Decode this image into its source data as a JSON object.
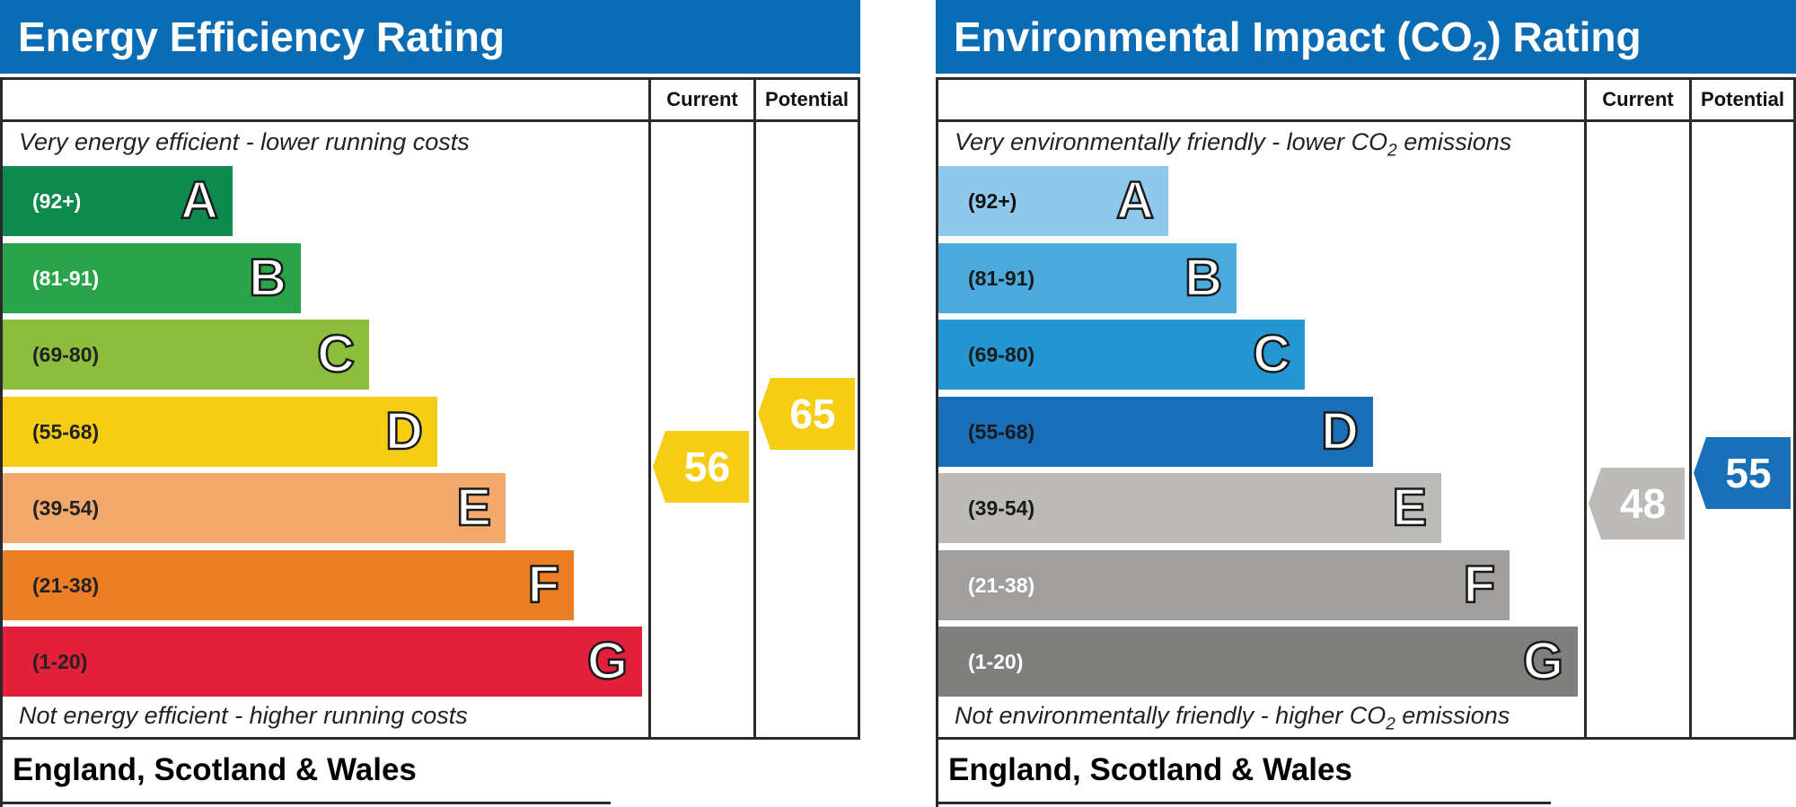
{
  "chart_data": [
    {
      "type": "bar",
      "title": "Energy Efficiency Rating",
      "columns": [
        "Current",
        "Potential"
      ],
      "top_note": "Very energy efficient - lower running costs",
      "bottom_note": "Not energy efficient - higher running costs",
      "footer": "England, Scotland & Wales",
      "bands": [
        {
          "letter": "A",
          "range": "(92+)",
          "color": "#0f8a4f",
          "text_color": "#ffffff"
        },
        {
          "letter": "B",
          "range": "(81-91)",
          "color": "#2aa44a",
          "text_color": "#ffffff"
        },
        {
          "letter": "C",
          "range": "(69-80)",
          "color": "#8dbd3c",
          "text_color": "#222222"
        },
        {
          "letter": "D",
          "range": "(55-68)",
          "color": "#f6cd15",
          "text_color": "#222222"
        },
        {
          "letter": "E",
          "range": "(39-54)",
          "color": "#f2a96b",
          "text_color": "#222222"
        },
        {
          "letter": "F",
          "range": "(21-38)",
          "color": "#ec7f25",
          "text_color": "#222222"
        },
        {
          "letter": "G",
          "range": "(1-20)",
          "color": "#e3203c",
          "text_color": "#222222"
        }
      ],
      "current": {
        "value": 56,
        "band": "D",
        "color": "#f6cd15"
      },
      "potential": {
        "value": 65,
        "band": "D",
        "color": "#f6cd15"
      }
    },
    {
      "type": "bar",
      "title_parts": [
        "Environmental Impact (CO",
        "2",
        ") Rating"
      ],
      "columns": [
        "Current",
        "Potential"
      ],
      "top_note_parts": [
        "Very environmentally friendly - lower CO",
        "2",
        " emissions"
      ],
      "bottom_note_parts": [
        "Not environmentally friendly - higher CO",
        "2",
        " emissions"
      ],
      "footer": "England, Scotland & Wales",
      "bands": [
        {
          "letter": "A",
          "range": "(92+)",
          "color": "#8fc8ea",
          "text_color": "#111111"
        },
        {
          "letter": "B",
          "range": "(81-91)",
          "color": "#4aaadc",
          "text_color": "#1a1a1a"
        },
        {
          "letter": "C",
          "range": "(69-80)",
          "color": "#2497d2",
          "text_color": "#1a1a1a"
        },
        {
          "letter": "D",
          "range": "(55-68)",
          "color": "#1a70b8",
          "text_color": "#1a1a1a"
        },
        {
          "letter": "E",
          "range": "(39-54)",
          "color": "#bdbbb8",
          "text_color": "#1a1a1a"
        },
        {
          "letter": "F",
          "range": "(21-38)",
          "color": "#a09f9d",
          "text_color": "#ffffff"
        },
        {
          "letter": "G",
          "range": "(1-20)",
          "color": "#7f7f7e",
          "text_color": "#ffffff"
        }
      ],
      "current": {
        "value": 48,
        "band": "E",
        "color": "#bdbbb8"
      },
      "potential": {
        "value": 55,
        "band": "D",
        "color": "#1a70b8"
      }
    }
  ]
}
